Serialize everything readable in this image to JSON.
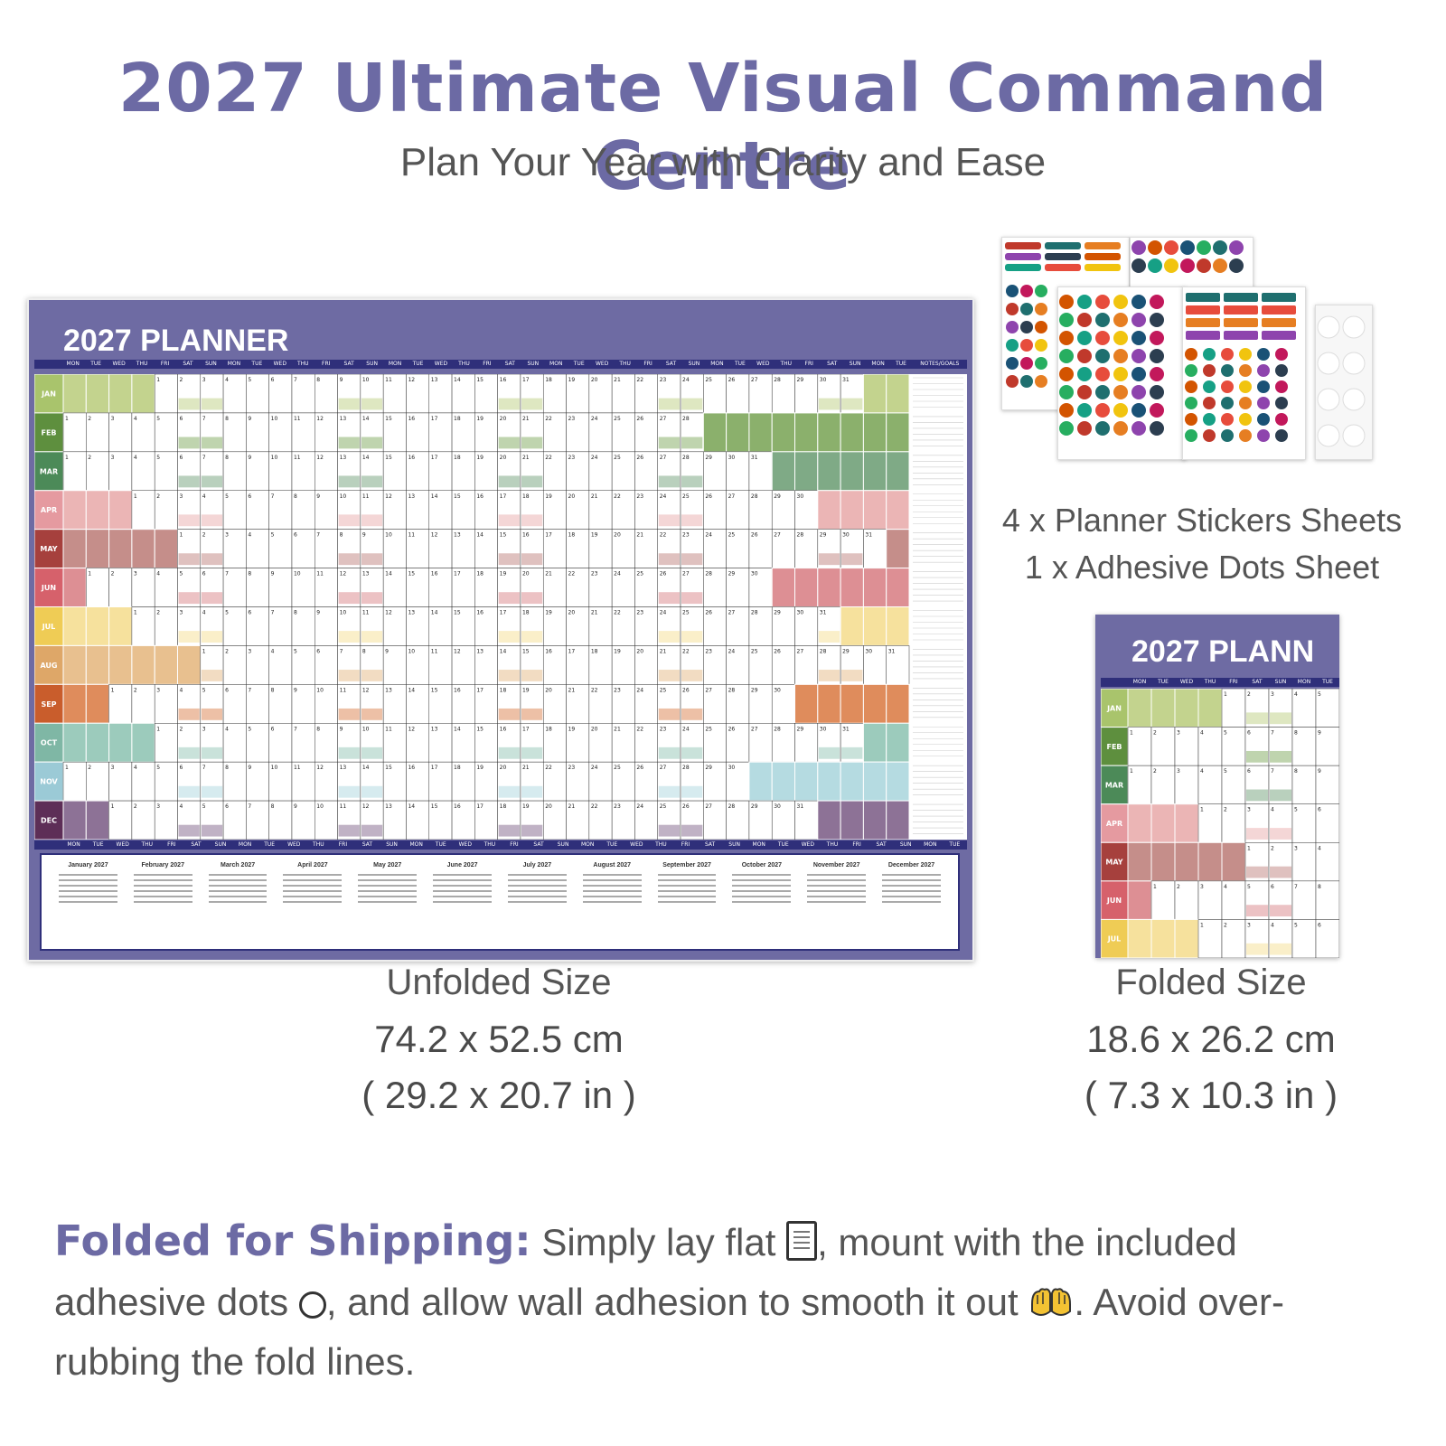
{
  "header": {
    "title": "2027 Ultimate Visual Command Centre",
    "subtitle": "Plan Your Year with Clarity and Ease"
  },
  "planner": {
    "title_big": "2027 PLANNER",
    "title_small": "2027 PLANN",
    "weekdays": [
      "MON",
      "TUE",
      "WED",
      "THU",
      "FRI",
      "SAT",
      "SUN"
    ],
    "notes_label": "NOTES/GOALS",
    "months": [
      "JAN",
      "FEB",
      "MAR",
      "APR",
      "MAY",
      "JUN",
      "JUL",
      "AUG",
      "SEP",
      "OCT",
      "NOV",
      "DEC"
    ],
    "month_colors": [
      "#a9c46c",
      "#5e8f3e",
      "#4c8a58",
      "#e59aa0",
      "#a6403d",
      "#d6616b",
      "#efcc55",
      "#dea768",
      "#c95d2c",
      "#7fb7a5",
      "#9bcad6",
      "#5d2e57"
    ],
    "month_fill": [
      "#c3d38e",
      "#8bb06c",
      "#7faa86",
      "#ebb5b5",
      "#c58e8a",
      "#dd8f94",
      "#f6e19d",
      "#e8c08f",
      "#df8c5c",
      "#9ccbbc",
      "#b5dbe1",
      "#8d7296"
    ],
    "start_offset": [
      4,
      0,
      0,
      3,
      5,
      1,
      3,
      6,
      2,
      4,
      0,
      2
    ],
    "days_in_month": [
      31,
      28,
      31,
      30,
      31,
      30,
      31,
      31,
      30,
      31,
      30,
      31
    ],
    "mini_calendar_titles": [
      "January 2027",
      "February 2027",
      "March 2027",
      "April 2027",
      "May 2027",
      "June 2027",
      "July 2027",
      "August 2027",
      "September 2027",
      "October 2027",
      "November 2027",
      "December 2027"
    ]
  },
  "stickers": {
    "caption_line1": "4 x Planner Stickers Sheets",
    "caption_line2": "1 x Adhesive Dots Sheet"
  },
  "unfolded": {
    "label": "Unfolded Size",
    "cm": "74.2 x 52.5 cm",
    "inches": "( 29.2 x 20.7 in )"
  },
  "folded": {
    "label": "Folded Size",
    "cm": "18.6 x 26.2 cm",
    "inches": "( 7.3 x 10.3 in )"
  },
  "shipping": {
    "lead": "Folded for Shipping:",
    "text1": " Simply lay flat ",
    "text2": ", mount with the included adhesive dots ",
    "text3": ", and allow wall adhesion to smooth it out ",
    "text4": ". Avoid over-rubbing the fold lines.",
    "icons": [
      "document-icon",
      "circle-icon",
      "hands-icon"
    ]
  }
}
